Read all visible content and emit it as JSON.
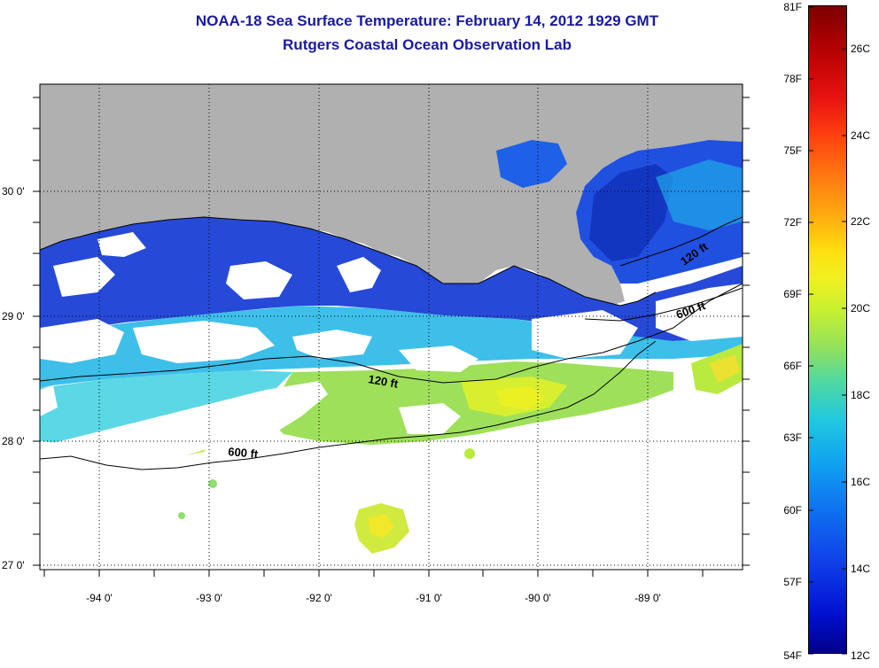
{
  "title": {
    "line1": "NOAA-18 Sea Surface Temperature:  February 14, 2012 1929 GMT",
    "line2": "Rutgers Coastal Ocean Observation Lab"
  },
  "map": {
    "lat_labels": [
      "30 0'",
      "29 0'",
      "28 0'",
      "27 0'"
    ],
    "lon_labels": [
      "-94 0'",
      "-93 0'",
      "-92 0'",
      "-91 0'",
      "-90 0'",
      "-89 0'"
    ],
    "isobath_labels": [
      {
        "text": "120 ft"
      },
      {
        "text": "600 ft"
      },
      {
        "text": "600 ft"
      },
      {
        "text": "120 ft"
      }
    ]
  },
  "colorbar": {
    "fahrenheit_labels": [
      "81F",
      "78F",
      "75F",
      "72F",
      "69F",
      "66F",
      "63F",
      "60F",
      "57F",
      "54F"
    ],
    "celsius_labels": [
      "26C",
      "24C",
      "22C",
      "20C",
      "18C",
      "16C",
      "14C",
      "12C"
    ]
  }
}
